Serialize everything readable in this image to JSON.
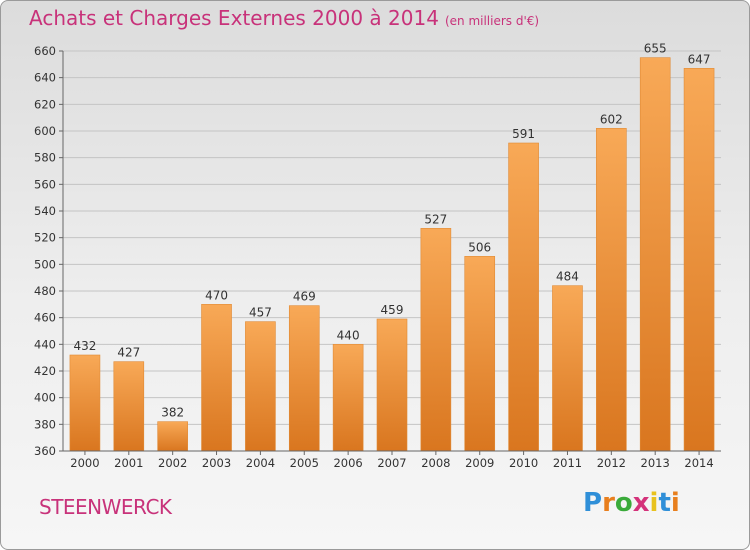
{
  "title": "Achats et Charges Externes 2000 à 2014",
  "subtitle": "(en milliers d'€)",
  "commune": "STEENWERCK",
  "logo": {
    "letters": [
      "P",
      "r",
      "o",
      "x",
      "i",
      "t",
      "i"
    ],
    "colors": [
      "#2f8fd8",
      "#e87f1e",
      "#3aaa3a",
      "#d4327a",
      "#e8c21e",
      "#2f8fd8",
      "#e87f1e"
    ]
  },
  "colors": {
    "bar_light": "#f8a957",
    "bar_dark": "#d9761f",
    "title": "#c8327a"
  },
  "chart_data": {
    "type": "bar",
    "categories": [
      "2000",
      "2001",
      "2002",
      "2003",
      "2004",
      "2005",
      "2006",
      "2007",
      "2008",
      "2009",
      "2010",
      "2011",
      "2012",
      "2013",
      "2014"
    ],
    "values": [
      432,
      427,
      382,
      470,
      457,
      469,
      440,
      459,
      527,
      506,
      591,
      484,
      602,
      655,
      647
    ],
    "ylim": [
      360,
      660
    ],
    "yticks": [
      360,
      380,
      400,
      420,
      440,
      460,
      480,
      500,
      520,
      540,
      560,
      580,
      600,
      620,
      640,
      660
    ],
    "grid": true,
    "legend": "none"
  }
}
